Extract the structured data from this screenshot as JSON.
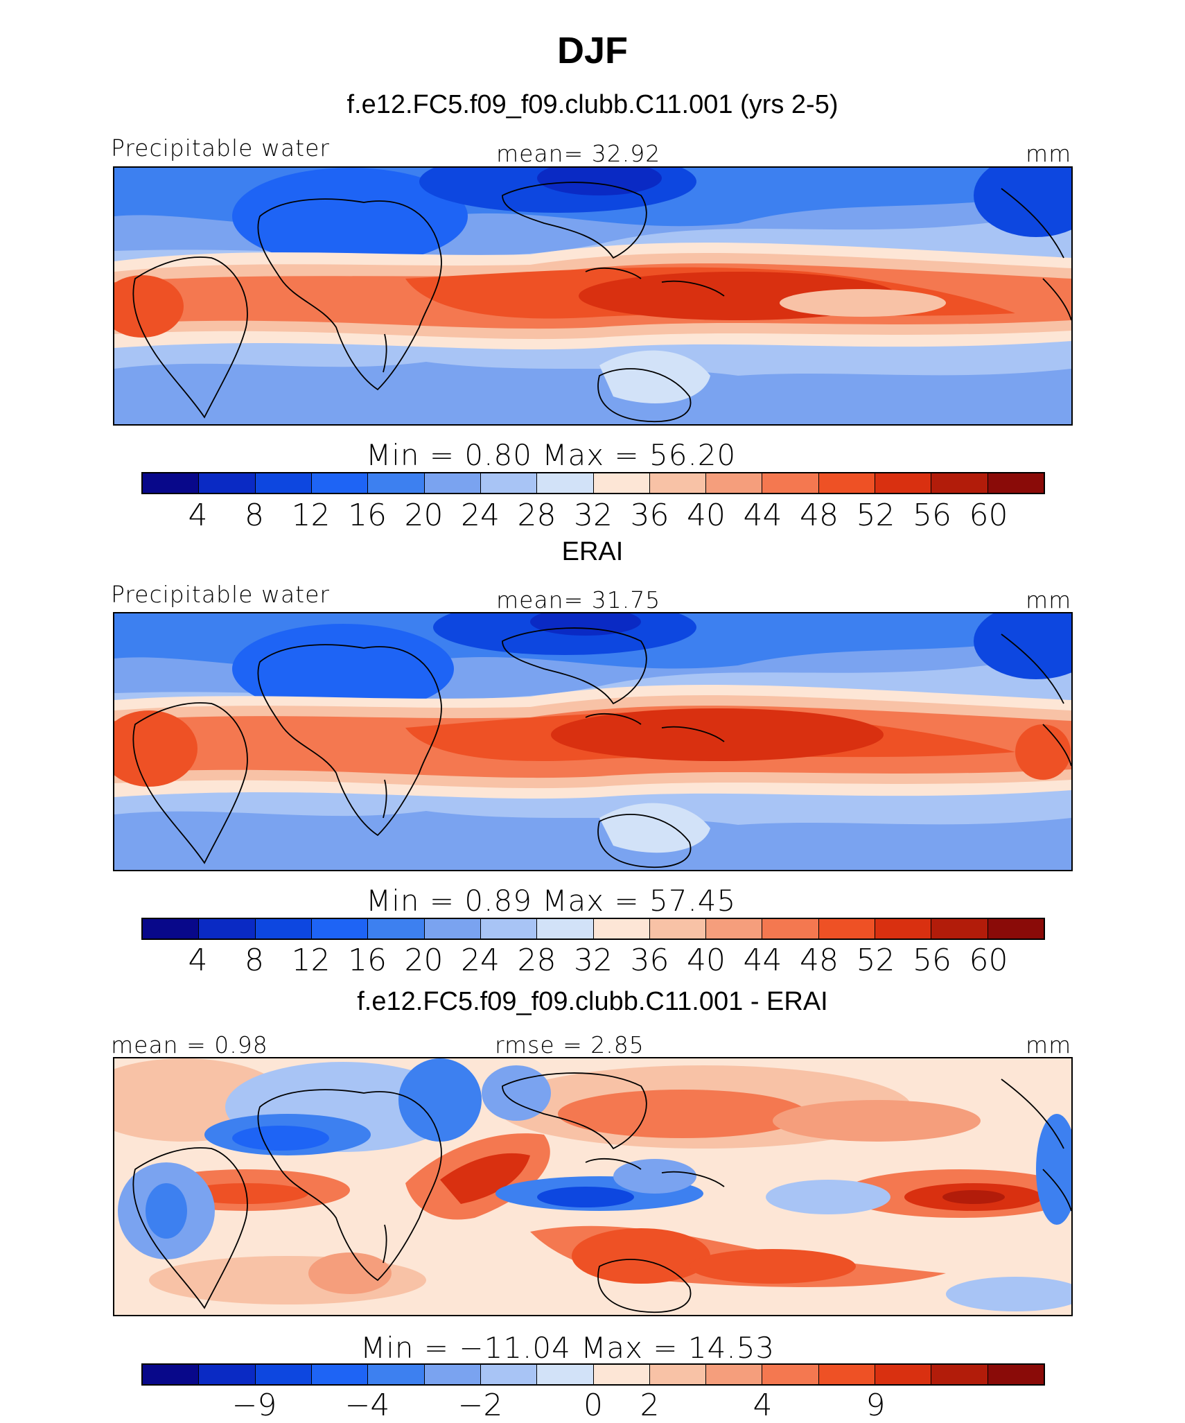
{
  "title": "DJF",
  "palette": [
    "#08088a",
    "#0a2ac4",
    "#0d47e0",
    "#1e64f5",
    "#3d80f0",
    "#7aa3f0",
    "#a8c4f5",
    "#d2e2f8",
    "#fde6d6",
    "#f8c2a6",
    "#f59e7c",
    "#f47850",
    "#ee5125",
    "#d93010",
    "#b21c0a",
    "#8a0b08"
  ],
  "panels": [
    {
      "title": "f.e12.FC5.f09_f09.clubb.C11.001 (yrs 2-5)",
      "left_label": "Precipitable water",
      "center_label": "mean=   32.92",
      "right_label": "mm",
      "minmax": "Min  =    0.80  Max  =   56.20",
      "colorbar_ticks": [
        "4",
        "8",
        "12",
        "16",
        "20",
        "24",
        "28",
        "32",
        "36",
        "40",
        "44",
        "48",
        "52",
        "56",
        "60"
      ]
    },
    {
      "title": "ERAI",
      "left_label": "Precipitable water",
      "center_label": "mean=   31.75",
      "right_label": "mm",
      "minmax": "Min  =    0.89  Max  =   57.45",
      "colorbar_ticks": [
        "4",
        "8",
        "12",
        "16",
        "20",
        "24",
        "28",
        "32",
        "36",
        "40",
        "44",
        "48",
        "52",
        "56",
        "60"
      ]
    },
    {
      "title": "f.e12.FC5.f09_f09.clubb.C11.001 - ERAI",
      "left_label": "mean =    0.98",
      "center_label": "rmse =    2.85",
      "right_label": "mm",
      "minmax": "Min  = −11.04  Max  =   14.53",
      "colorbar_ticks": [
        "−9",
        "−4",
        "−2",
        "0",
        "2",
        "4",
        "9"
      ]
    }
  ]
}
